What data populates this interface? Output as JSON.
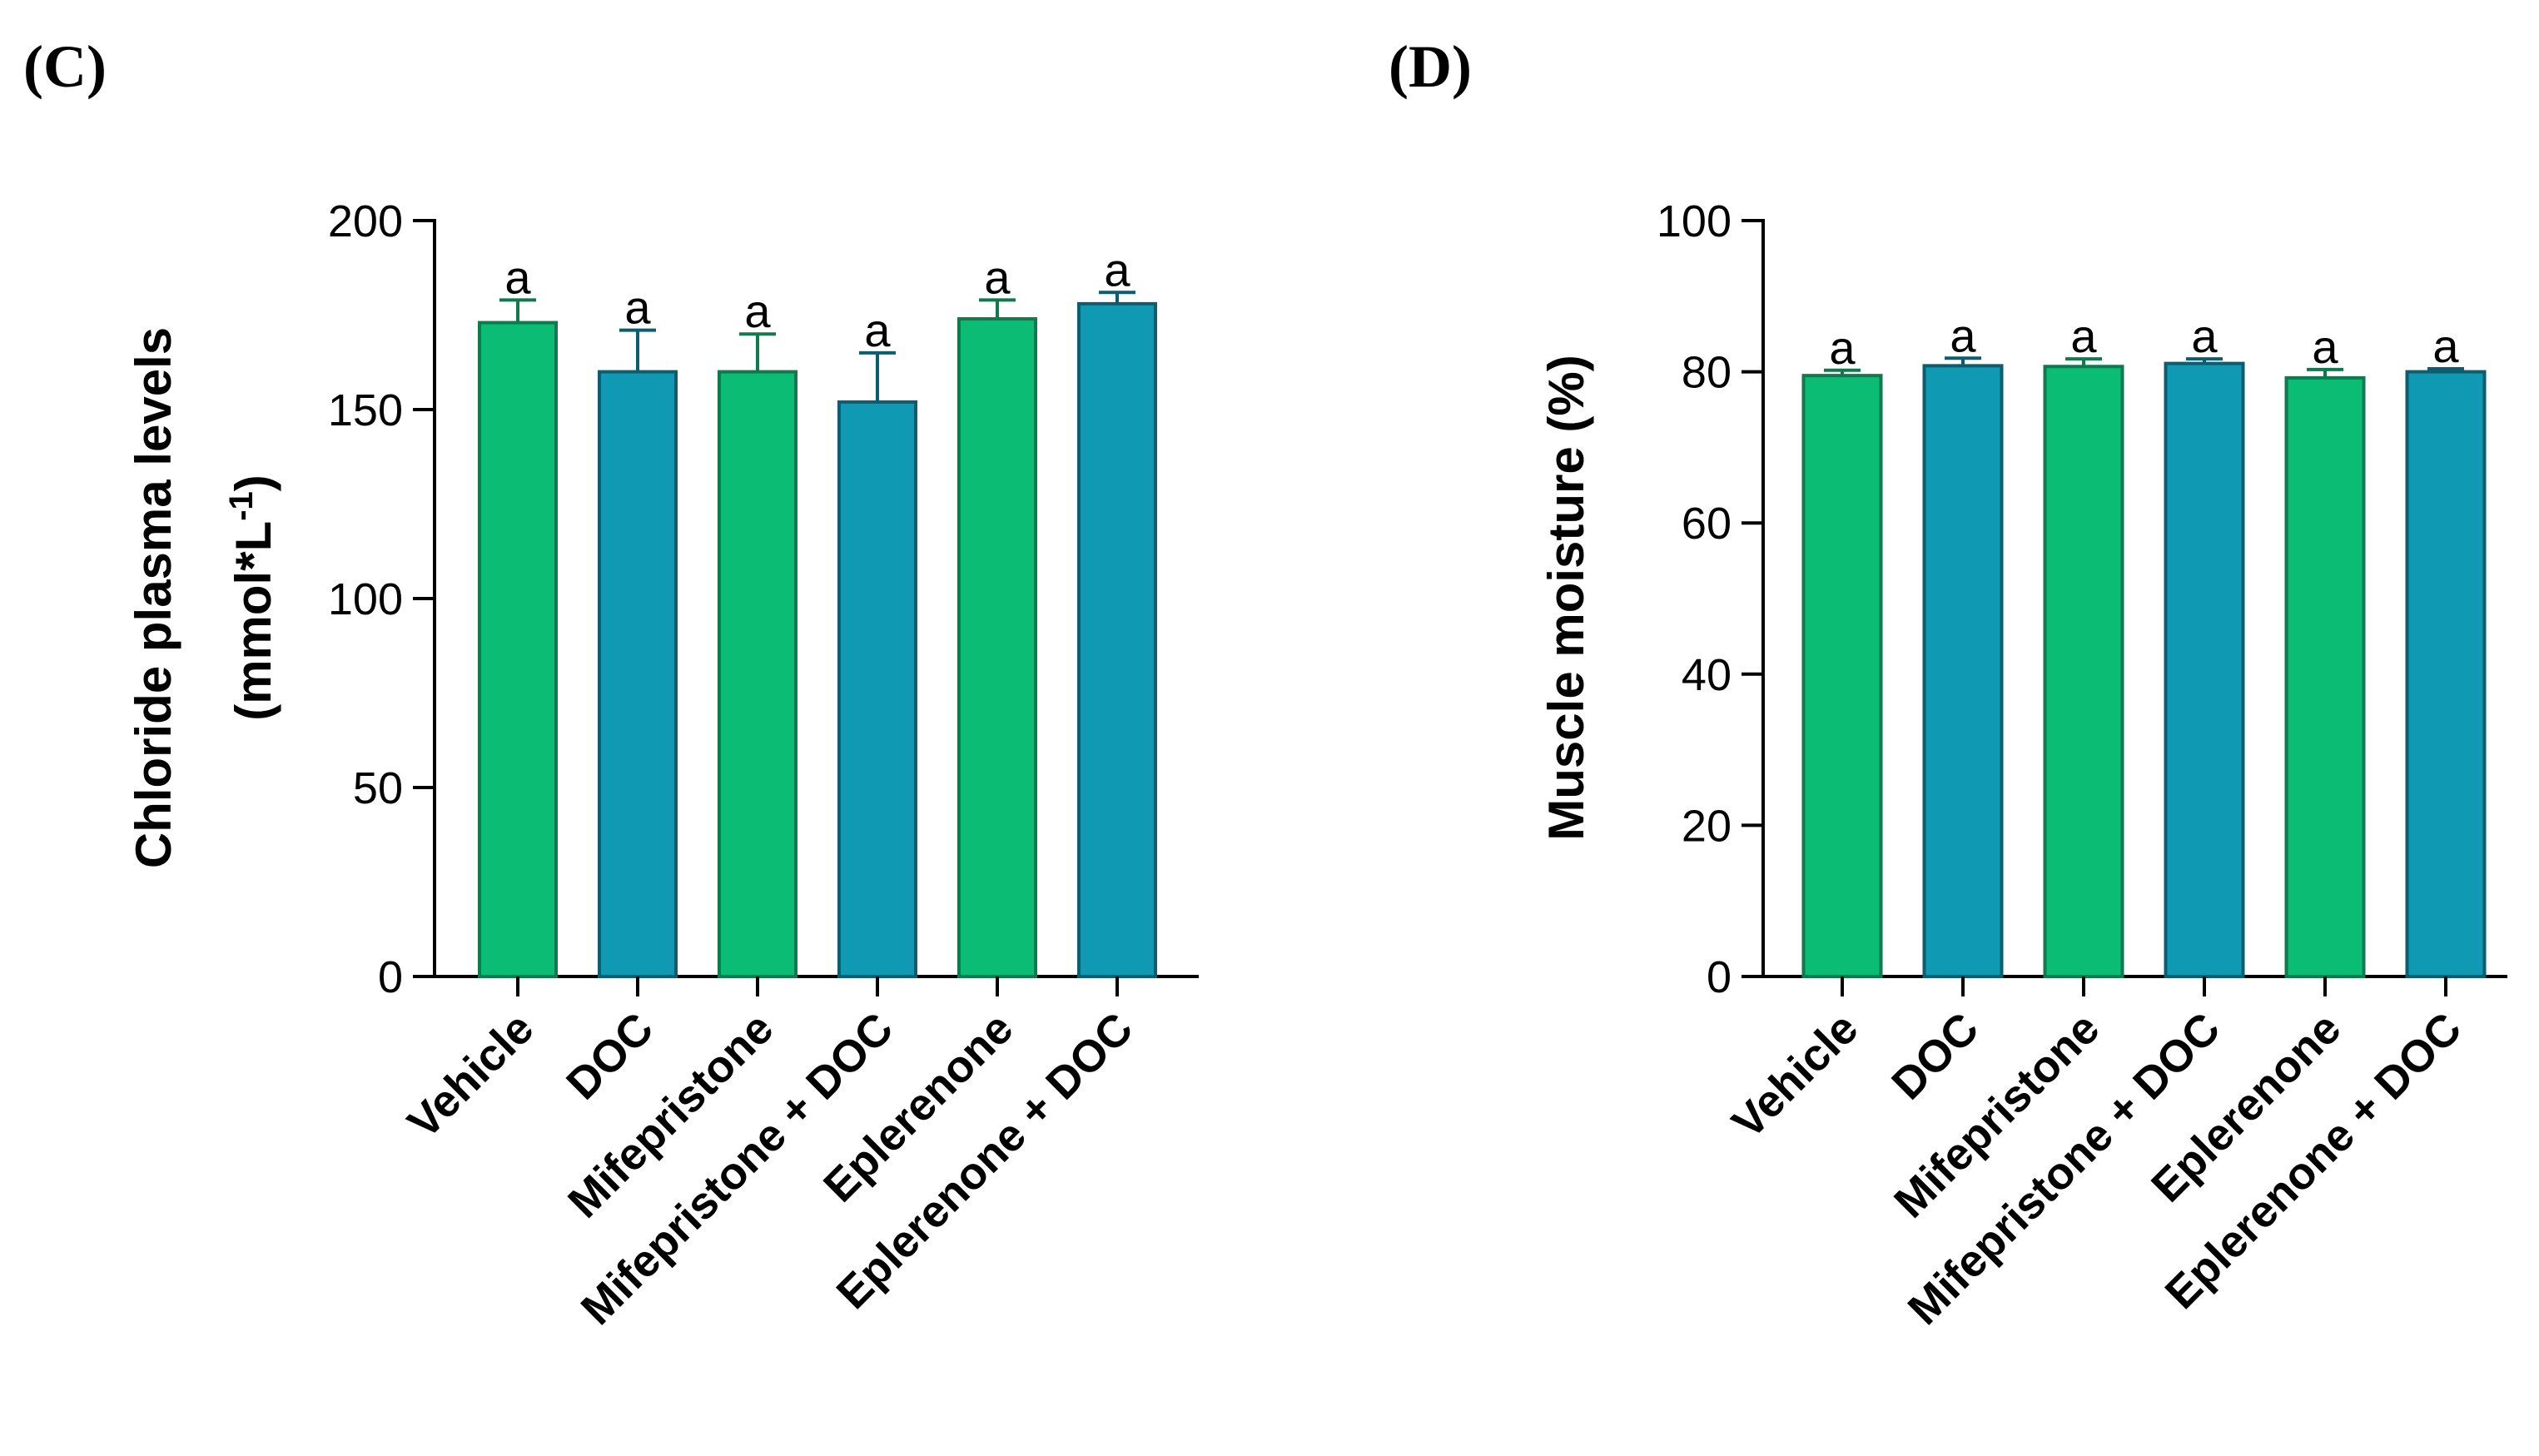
{
  "chart_data": [
    {
      "panel": "(C)",
      "type": "bar",
      "categories": [
        "Vehicle",
        "DOC",
        "Mifepristone",
        "Mifepristone + DOC",
        "Eplerenone",
        "Eplerenone + DOC"
      ],
      "values": [
        173,
        160,
        160,
        152,
        174,
        178
      ],
      "errors": [
        6,
        11,
        10,
        13,
        5,
        3
      ],
      "significance": [
        "a",
        "a",
        "a",
        "a",
        "a",
        "a"
      ],
      "ylabel_line1": "Chloride plasma levels",
      "ylabel_line2_prefix": "(mmol*L",
      "ylabel_line2_sup": "-1",
      "ylabel_line2_suffix": ")",
      "ylim": [
        0,
        200
      ],
      "yticks": [
        0,
        50,
        100,
        150,
        200
      ],
      "colors": [
        "#0bbd74",
        "#0f99b3",
        "#0bbd74",
        "#0f99b3",
        "#0bbd74",
        "#0f99b3"
      ],
      "edge_colors": [
        "#11794e",
        "#0d5d70",
        "#11794e",
        "#0d5d70",
        "#11794e",
        "#0d5d70"
      ]
    },
    {
      "panel": "(D)",
      "type": "bar",
      "categories": [
        "Vehicle",
        "DOC",
        "Mifepristone",
        "Mifepristone + DOC",
        "Eplerenone",
        "Eplerenone + DOC"
      ],
      "values": [
        79.5,
        80.8,
        80.7,
        81.1,
        79.2,
        80.0
      ],
      "errors": [
        0.7,
        1.0,
        1.0,
        0.6,
        1.1,
        0.4
      ],
      "significance": [
        "a",
        "a",
        "a",
        "a",
        "a",
        "a"
      ],
      "ylabel_line1": "Muscle moisture (%)",
      "ylim": [
        0,
        100
      ],
      "yticks": [
        0,
        20,
        40,
        60,
        80,
        100
      ],
      "colors": [
        "#0bbd74",
        "#0f99b3",
        "#0bbd74",
        "#0f99b3",
        "#0bbd74",
        "#0f99b3"
      ],
      "edge_colors": [
        "#11794e",
        "#0d5d70",
        "#11794e",
        "#0d5d70",
        "#11794e",
        "#0d5d70"
      ]
    }
  ]
}
